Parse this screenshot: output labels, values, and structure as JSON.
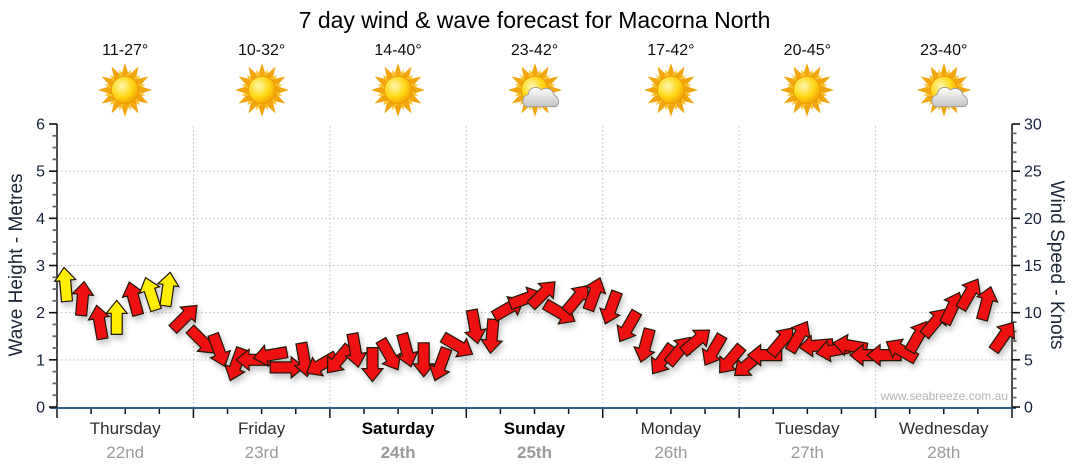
{
  "title": "7 day wind & wave forecast for Macorna North",
  "watermark": "www.seabreeze.com.au",
  "axes": {
    "left_title": "Wave Height - Metres",
    "right_title": "Wind Speed - Knots",
    "wave_ticks": [
      0,
      1,
      2,
      3,
      4,
      5,
      6
    ],
    "wind_ticks": [
      0,
      5,
      10,
      15,
      20,
      25,
      30
    ]
  },
  "colors": {
    "arrow_red": "#ee1111",
    "arrow_yellow": "#ffee00",
    "arrow_outline": "#221605",
    "bottom_axis_line": "#2f5f87",
    "axis_line": "#1f1f1f",
    "gridline": "#bcbcbc",
    "tick_label": "#16213a",
    "date_gray": "#9a9a9a",
    "watermark_gray": "#b4b4b4"
  },
  "forecast": {
    "days": [
      {
        "name": "Thursday",
        "date": "22nd",
        "temps": "11-27°",
        "icon": "sunny",
        "weekend": false
      },
      {
        "name": "Friday",
        "date": "23rd",
        "temps": "10-32°",
        "icon": "sunny",
        "weekend": false
      },
      {
        "name": "Saturday",
        "date": "24th",
        "temps": "14-40°",
        "icon": "sunny",
        "weekend": true
      },
      {
        "name": "Sunday",
        "date": "25th",
        "temps": "23-42°",
        "icon": "partly-cloudy",
        "weekend": true
      },
      {
        "name": "Monday",
        "date": "26th",
        "temps": "17-42°",
        "icon": "sunny",
        "weekend": false
      },
      {
        "name": "Tuesday",
        "date": "27th",
        "temps": "20-45°",
        "icon": "sunny",
        "weekend": false
      },
      {
        "name": "Wednesday",
        "date": "28th",
        "temps": "23-40°",
        "icon": "partly-cloudy",
        "weekend": false
      }
    ]
  },
  "chart_data": {
    "type": "wind-arrow-series",
    "title": "7 day wind & wave forecast for Macorna North",
    "x_days": [
      "Thursday 22nd",
      "Friday 23rd",
      "Saturday 24th",
      "Sunday 25th",
      "Monday 26th",
      "Tuesday 27th",
      "Wednesday 28th"
    ],
    "points_per_day": 8,
    "x_unit": "3-hour steps",
    "wave_axis_range": [
      0,
      6
    ],
    "wind_axis_range": [
      0,
      30
    ],
    "grid": "dotted horizontal at 1-5 m, dotted vertical at day boundaries",
    "direction_convention": "degrees clockwise, 0 = arrow pointing up (chart-north)",
    "colors": {
      "red": "#ee1111",
      "yellow": "#ffee00"
    },
    "series": [
      {
        "day": "Thursday",
        "speeds_knots": [
          13,
          11.5,
          9,
          9.5,
          11.5,
          12,
          12.5,
          9.5
        ],
        "directions_deg": [
          -5,
          5,
          -10,
          0,
          -15,
          -18,
          8,
          45
        ],
        "colors": [
          "yellow",
          "red",
          "red",
          "yellow",
          "red",
          "yellow",
          "yellow",
          "red"
        ]
      },
      {
        "day": "Friday",
        "speeds_knots": [
          7,
          6,
          4.5,
          5,
          5.5,
          4.2,
          5,
          4.5
        ],
        "directions_deg": [
          135,
          160,
          -160,
          -90,
          -100,
          90,
          170,
          -120
        ],
        "colors": [
          "red",
          "red",
          "red",
          "red",
          "red",
          "red",
          "red",
          "red"
        ]
      },
      {
        "day": "Saturday",
        "speeds_knots": [
          5,
          6,
          4.5,
          5.5,
          6,
          5,
          4.5,
          6.5
        ],
        "directions_deg": [
          -140,
          170,
          180,
          150,
          165,
          180,
          -160,
          120
        ],
        "colors": [
          "red",
          "red",
          "red",
          "red",
          "red",
          "red",
          "red",
          "red"
        ]
      },
      {
        "day": "Sunday",
        "speeds_knots": [
          8.5,
          7.5,
          10.5,
          11.5,
          12,
          10,
          11.5,
          12
        ],
        "directions_deg": [
          170,
          185,
          60,
          70,
          45,
          120,
          40,
          20
        ],
        "colors": [
          "red",
          "red",
          "red",
          "red",
          "red",
          "red",
          "red",
          "red"
        ]
      },
      {
        "day": "Monday",
        "speeds_knots": [
          10.5,
          8.5,
          6.5,
          5,
          6,
          7,
          6,
          5
        ],
        "directions_deg": [
          200,
          210,
          195,
          215,
          40,
          50,
          210,
          220
        ],
        "colors": [
          "red",
          "red",
          "red",
          "red",
          "red",
          "red",
          "red",
          "red"
        ]
      },
      {
        "day": "Tuesday",
        "speeds_knots": [
          4.5,
          5.5,
          7,
          7.5,
          6.5,
          6,
          6.5,
          5.5
        ],
        "directions_deg": [
          230,
          -90,
          40,
          30,
          -95,
          -100,
          -80,
          -90
        ],
        "colors": [
          "red",
          "red",
          "red",
          "red",
          "red",
          "red",
          "red",
          "red"
        ]
      },
      {
        "day": "Wednesday",
        "speeds_knots": [
          5.5,
          6,
          7.5,
          9,
          10.5,
          12,
          11,
          7.5
        ],
        "directions_deg": [
          -90,
          -60,
          30,
          40,
          25,
          30,
          15,
          35
        ],
        "colors": [
          "red",
          "red",
          "red",
          "red",
          "red",
          "red",
          "red",
          "red"
        ]
      }
    ]
  }
}
